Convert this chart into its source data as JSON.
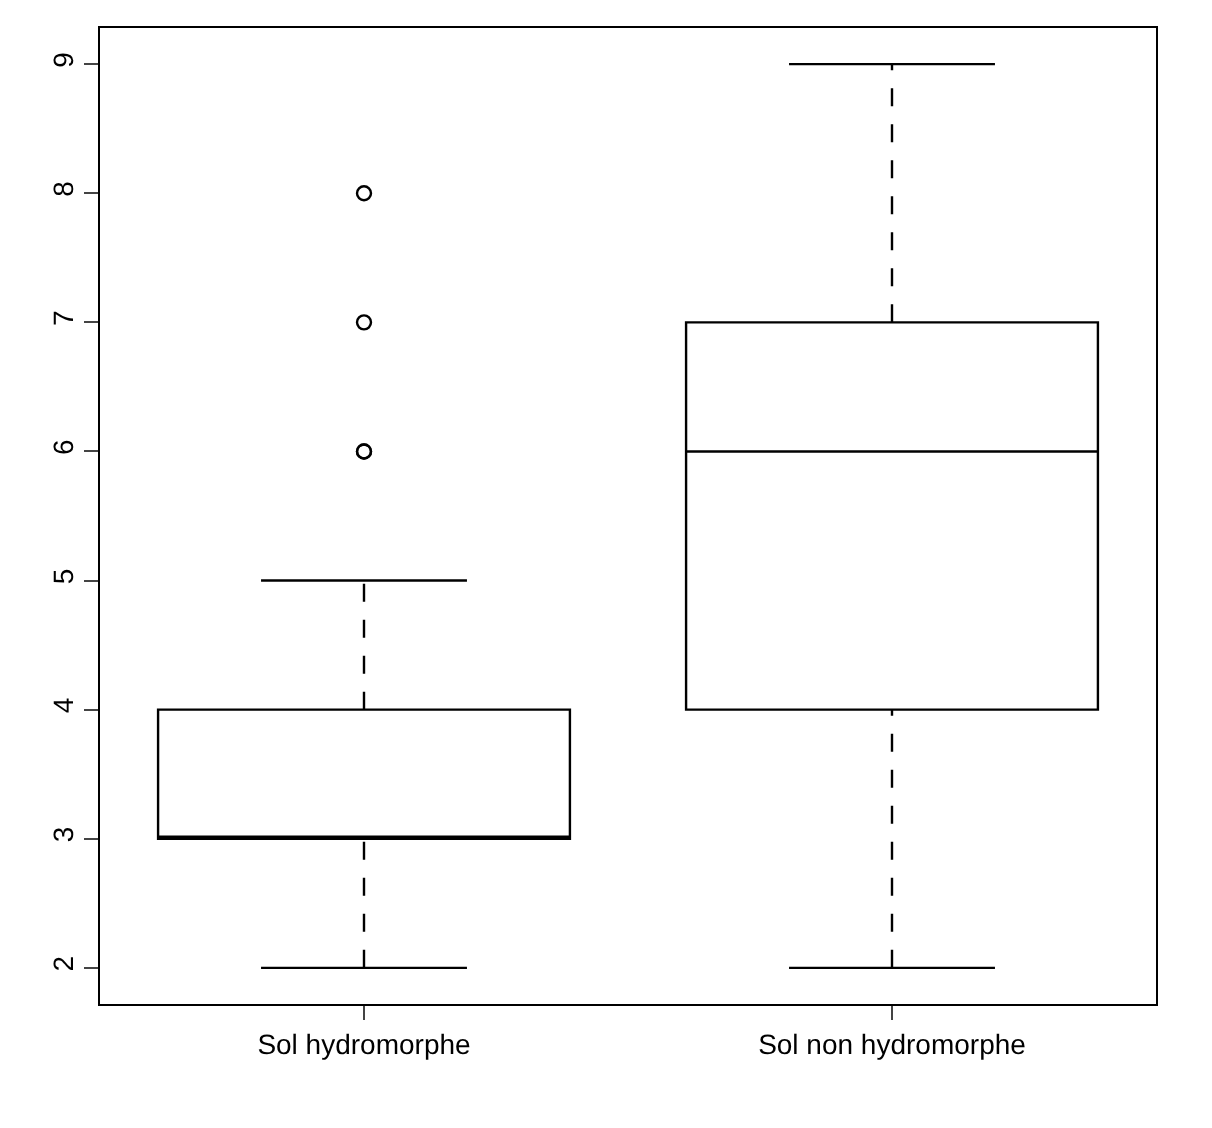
{
  "chart_data": {
    "type": "box",
    "categories": [
      "Sol hydromorphe",
      "Sol non hydromorphe"
    ],
    "boxes": [
      {
        "low": 2,
        "q1": 3,
        "median": 3,
        "q3": 4,
        "high": 5,
        "outliers": [
          6,
          6,
          7,
          8
        ]
      },
      {
        "low": 2,
        "q1": 4,
        "median": 6,
        "q3": 7,
        "high": 9
      }
    ],
    "color": "#000000",
    "ylim": [
      1.72,
      9.28
    ],
    "yticks": [
      2,
      3,
      4,
      5,
      6,
      7,
      8,
      9
    ],
    "grid": false,
    "marker": "circle",
    "line_style": "dashed"
  }
}
